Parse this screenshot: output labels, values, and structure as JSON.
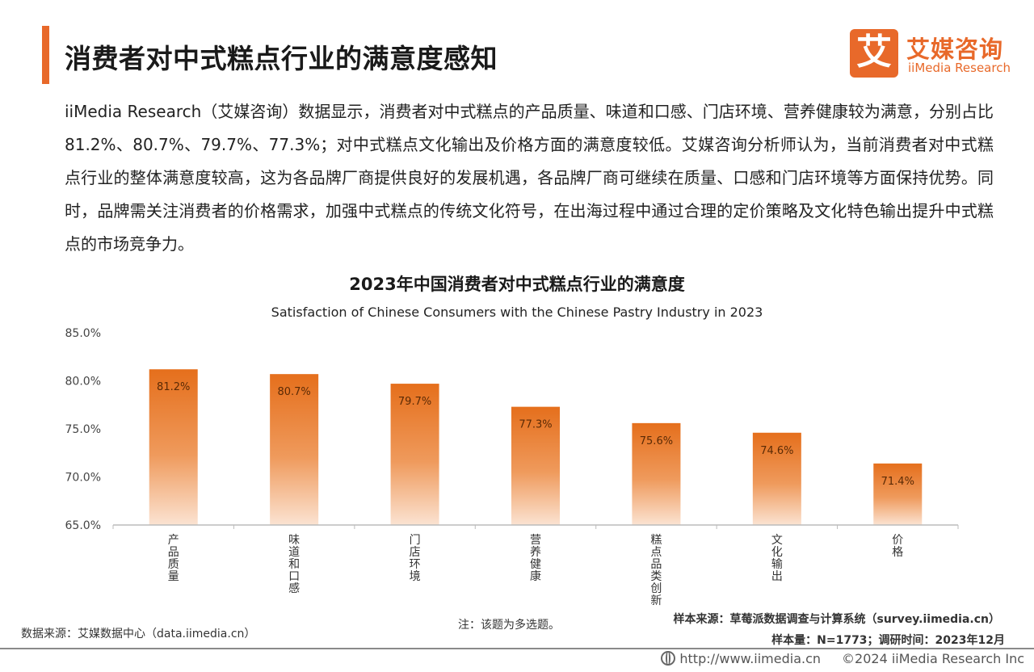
{
  "header": {
    "title": "消费者对中式糕点行业的满意度感知"
  },
  "logo": {
    "mark": "艾",
    "cn": "艾媒咨询",
    "en": "iiMedia Research"
  },
  "description": "iiMedia Research（艾媒咨询）数据显示，消费者对中式糕点的产品质量、味道和口感、门店环境、营养健康较为满意，分别占比81.2%、80.7%、79.7%、77.3%；对中式糕点文化输出及价格方面的满意度较低。艾媒咨询分析师认为，当前消费者对中式糕点行业的整体满意度较高，这为各品牌厂商提供良好的发展机遇，各品牌厂商可继续在质量、口感和门店环境等方面保持优势。同时，品牌需关注消费者的价格需求，加强中式糕点的传统文化符号，在出海过程中通过合理的定价策略及文化特色输出提升中式糕点的市场竞争力。",
  "chart_data": {
    "type": "bar",
    "title": "2023年中国消费者对中式糕点行业的满意度",
    "subtitle": "Satisfaction of Chinese Consumers with the Chinese Pastry Industry in 2023",
    "categories": [
      "产品质量",
      "味道和口感",
      "门店环境",
      "营养健康",
      "糕点品类创新",
      "文化输出",
      "价格"
    ],
    "values": [
      81.2,
      80.7,
      79.7,
      77.3,
      75.6,
      74.6,
      71.4
    ],
    "data_labels": [
      "81.2%",
      "80.7%",
      "79.7%",
      "77.3%",
      "75.6%",
      "74.6%",
      "71.4%"
    ],
    "ylim": [
      65,
      85
    ],
    "yticks": [
      65,
      70,
      75,
      80,
      85
    ],
    "ytick_labels": [
      "65.0%",
      "70.0%",
      "75.0%",
      "80.0%",
      "85.0%"
    ],
    "xlabel": "",
    "ylabel": "",
    "grid": false,
    "bar_color_top": "#e56f1c",
    "bar_color_bottom": "#fbe3d2"
  },
  "notes": {
    "note": "注：该题为多选题。",
    "data_source": "数据来源：艾媒数据中心（data.iimedia.cn）",
    "sample_source": "样本来源：草莓派数据调查与计算系统（survey.iimedia.cn）",
    "sample_info": "样本量：N=1773；调研时间：2023年12月"
  },
  "footer": {
    "url": "http://www.iimedia.cn",
    "copyright": "©2024  iiMedia Research  Inc"
  },
  "colors": {
    "accent": "#e8692a"
  }
}
